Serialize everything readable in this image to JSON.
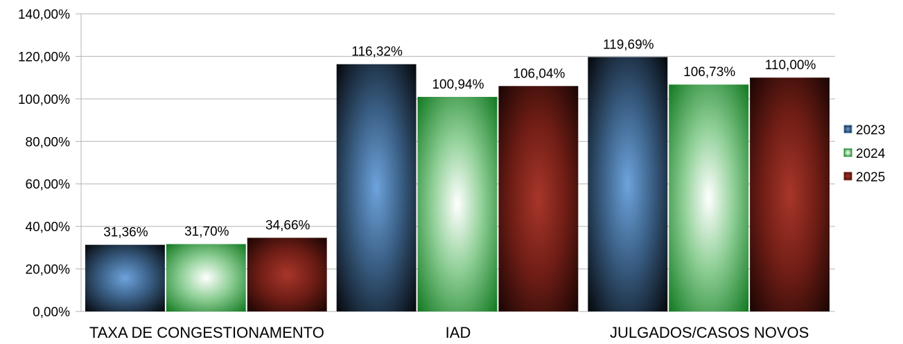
{
  "chart_data": {
    "type": "bar",
    "categories": [
      "TAXA DE CONGESTIONAMENTO",
      "IAD",
      "JULGADOS/CASOS NOVOS"
    ],
    "series": [
      {
        "name": "2023",
        "values": [
          31.36,
          116.32,
          119.69
        ],
        "labels": [
          "31,36%",
          "116,32%",
          "119,69%"
        ],
        "color": "#5b8fc7"
      },
      {
        "name": "2024",
        "values": [
          31.7,
          100.94,
          106.73
        ],
        "labels": [
          "31,70%",
          "100,94%",
          "106,73%"
        ],
        "color": "#1e8a2e"
      },
      {
        "name": "2025",
        "values": [
          34.66,
          106.04,
          110.0
        ],
        "labels": [
          "34,66%",
          "106,04%",
          "110,00%"
        ],
        "color": "#8e2419"
      }
    ],
    "yticks": [
      "0,00%",
      "20,00%",
      "40,00%",
      "60,00%",
      "80,00%",
      "100,00%",
      "120,00%",
      "140,00%"
    ],
    "ylim": [
      0,
      140
    ],
    "grid": true,
    "legend": "right"
  }
}
